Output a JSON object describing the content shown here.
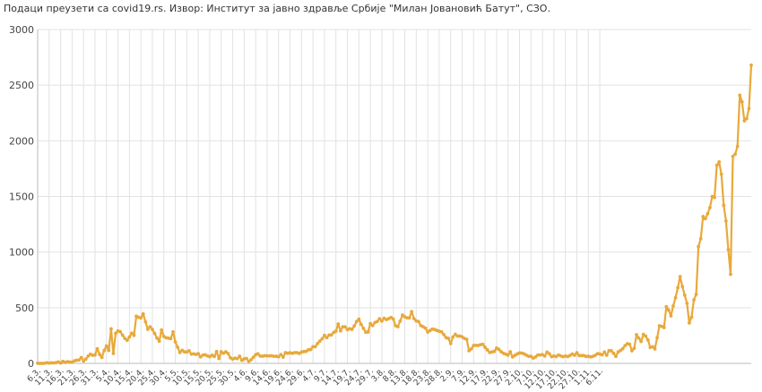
{
  "source_note": "Подаци преузети са covid19.rs. Извор: Институт за јавно здравље Србије \"Милан Јовановић Батут\", СЗО.",
  "colors": {
    "line": "#e8a93b",
    "grid": "#e2e2e2",
    "axis": "#bbbbbb"
  },
  "chart_data": {
    "type": "line",
    "title": "",
    "xlabel": "",
    "ylabel": "",
    "ylim": [
      0,
      3000
    ],
    "yticks": [
      0,
      500,
      1000,
      1500,
      2000,
      2500,
      3000
    ],
    "grid": true,
    "legend": "none",
    "x_tick_labels": [
      "6.3.",
      "11.3.",
      "16.3.",
      "21.3.",
      "26.3.",
      "31.3.",
      "5.4.",
      "10.4.",
      "15.4.",
      "20.4.",
      "25.4.",
      "30.4.",
      "5.5.",
      "10.5.",
      "15.5.",
      "20.5.",
      "25.5.",
      "30.5.",
      "4.6.",
      "9.6.",
      "14.6.",
      "19.6.",
      "24.6.",
      "29.6.",
      "4.7.",
      "9.7.",
      "14.7.",
      "19.7.",
      "24.7.",
      "29.7.",
      "3.8.",
      "8.8.",
      "13.8.",
      "18.8.",
      "23.8.",
      "28.8.",
      "2.9.",
      "7.9.",
      "12.9.",
      "17.9.",
      "22.9.",
      "27.9.",
      "2.10.",
      "7.10.",
      "12.10.",
      "17.10.",
      "22.10.",
      "27.10.",
      "1.11.",
      "6.11."
    ],
    "series": [
      {
        "start_label": "6.3.",
        "values": [
          1,
          0,
          0,
          1,
          6,
          2,
          5,
          4,
          6,
          13,
          3,
          18,
          9,
          15,
          12,
          10,
          23,
          28,
          30,
          52,
          21,
          38,
          65,
          82,
          72,
          75,
          132,
          80,
          53,
          116,
          157,
          116,
          310,
          89,
          270,
          291,
          285,
          253,
          224,
          207,
          237,
          271,
          251,
          424,
          413,
          408,
          445,
          373,
          307,
          329,
          305,
          268,
          227,
          199,
          300,
          242,
          230,
          226,
          222,
          283,
          193,
          145,
          98,
          117,
          103,
          102,
          113,
          83,
          85,
          80,
          87,
          58,
          74,
          77,
          67,
          60,
          73,
          62,
          106,
          43,
          104,
          91,
          104,
          88,
          50,
          38,
          47,
          42,
          64,
          27,
          40,
          44,
          18,
          32,
          54,
          77,
          86,
          66,
          64,
          69,
          67,
          67,
          68,
          63,
          64,
          59,
          79,
          56,
          96,
          91,
          95,
          90,
          96,
          96,
          89,
          102,
          106,
          108,
          122,
          124,
          150,
          150,
          179,
          200,
          221,
          252,
          231,
          254,
          255,
          278,
          290,
          354,
          292,
          329,
          328,
          303,
          311,
          306,
          337,
          376,
          398,
          350,
          314,
          280,
          282,
          358,
          340,
          367,
          376,
          401,
          380,
          405,
          393,
          402,
          412,
          398,
          338,
          330,
          380,
          434,
          418,
          409,
          408,
          465,
          402,
          381,
          376,
          339,
          330,
          317,
          281,
          295,
          308,
          304,
          296,
          288,
          283,
          259,
          231,
          225,
          178,
          237,
          261,
          245,
          245,
          238,
          224,
          216,
          114,
          130,
          161,
          162,
          161,
          168,
          171,
          144,
          121,
          98,
          103,
          107,
          138,
          126,
          105,
          90,
          82,
          74,
          104,
          57,
          72,
          84,
          93,
          92,
          85,
          73,
          63,
          63,
          47,
          57,
          75,
          75,
          78,
          66,
          101,
          86,
          60,
          66,
          61,
          75,
          67,
          60,
          66,
          61,
          71,
          84,
          73,
          95,
          70,
          70,
          70,
          62,
          64,
          58,
          63,
          72,
          87,
          84,
          76,
          101,
          73,
          114,
          113,
          91,
          62,
          103,
          116,
          132,
          160,
          177,
          172,
          113,
          135,
          257,
          227,
          196,
          260,
          245,
          210,
          143,
          150,
          130,
          230,
          338,
          333,
          322,
          510,
          479,
          426,
          517,
          590,
          680,
          780,
          690,
          614,
          540,
          363,
          415,
          570,
          620,
          1050,
          1120,
          1320,
          1300,
          1345,
          1400,
          1500,
          1490,
          1780,
          1810,
          1700,
          1420,
          1280,
          1022,
          800,
          1860,
          1880,
          1950,
          2410,
          2350,
          2180,
          2200,
          2290,
          2680
        ]
      }
    ]
  }
}
